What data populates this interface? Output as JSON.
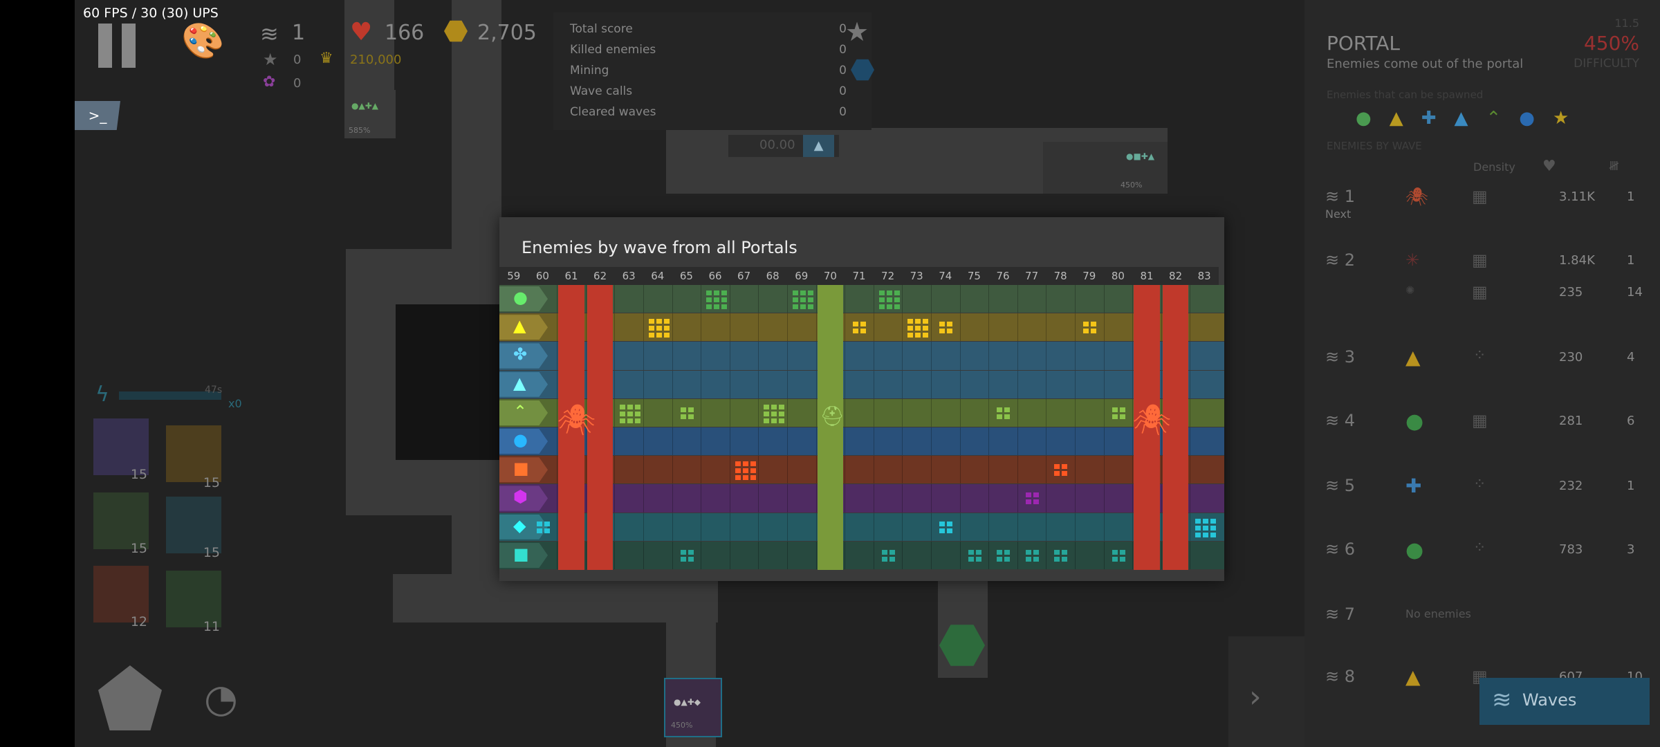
{
  "hud": {
    "fps": "60 FPS / 30 (30) UPS",
    "wave": "1",
    "health": "166",
    "coins": "2,705",
    "stars": "0",
    "crown_score": "210,000",
    "hearts_small": "0",
    "terminal_label": ">_",
    "ability_timer": "47s",
    "ability_multiplier": "x0",
    "ability_counts": [
      "15",
      "15",
      "15",
      "15",
      "12",
      "11"
    ]
  },
  "map": {
    "portal_percent_top": "585%",
    "portal_percent_right": "450%",
    "portal_percent_bottom": "450%",
    "bridge_value": "00.00"
  },
  "score_panel": {
    "rows": [
      {
        "label": "Total score",
        "value": "0"
      },
      {
        "label": "Killed enemies",
        "value": "0"
      },
      {
        "label": "Mining",
        "value": "0"
      },
      {
        "label": "Wave calls",
        "value": "0"
      },
      {
        "label": "Cleared waves",
        "value": "0"
      }
    ]
  },
  "modal": {
    "title": "Enemies by wave from all Portals",
    "wave_numbers": [
      "59",
      "60",
      "61",
      "62",
      "63",
      "64",
      "65",
      "66",
      "67",
      "68",
      "69",
      "70",
      "71",
      "72",
      "73",
      "74",
      "75",
      "76",
      "77",
      "78",
      "79",
      "80",
      "81",
      "82",
      "83"
    ],
    "rows": [
      {
        "shape": "circle",
        "color": "#4caf50",
        "bg": "#3f5a3f",
        "icon": "green-circle-icon"
      },
      {
        "shape": "triangle",
        "color": "#f5c518",
        "bg": "#6f6125",
        "icon": "yellow-triangle-icon"
      },
      {
        "shape": "fan",
        "color": "#4da3e0",
        "bg": "#2f5a73",
        "icon": "blue-fan-icon"
      },
      {
        "shape": "triangle",
        "color": "#5cc0f0",
        "bg": "#2e5a73",
        "icon": "blue-triangle-icon"
      },
      {
        "shape": "chevron",
        "color": "#8bc34a",
        "bg": "#556b30",
        "icon": "green-chevron-icon"
      },
      {
        "shape": "circle",
        "color": "#1e88e5",
        "bg": "#29507a",
        "icon": "blue-circle-icon"
      },
      {
        "shape": "square",
        "color": "#ff5722",
        "bg": "#6e3522",
        "icon": "orange-square-icon"
      },
      {
        "shape": "hexagon",
        "color": "#9c27b0",
        "bg": "#4f2b62",
        "icon": "purple-hexagon-icon"
      },
      {
        "shape": "diamond",
        "color": "#26c6da",
        "bg": "#245a63",
        "icon": "cyan-diamond-icon"
      },
      {
        "shape": "square",
        "color": "#26a69a",
        "bg": "#27493f",
        "icon": "teal-square-icon"
      }
    ],
    "red_boss_columns": [
      "61",
      "62",
      "81",
      "82"
    ],
    "green_boss_column": "70"
  },
  "right_panel": {
    "title": "PORTAL",
    "subtitle": "Enemies come out of the portal",
    "difficulty_value": "450%",
    "difficulty_label": "DIFFICULTY",
    "difficulty_small": "11.5",
    "spawn_heading": "Enemies that can be spawned",
    "by_wave_heading": "ENEMIES BY WAVE",
    "col_density": "Density",
    "waves": [
      {
        "n": "1",
        "sub": "Next",
        "hp": "3.11K",
        "count": "1"
      },
      {
        "n": "2",
        "sub": "",
        "hp": "1.84K",
        "count": "1"
      },
      {
        "n": "",
        "sub": "",
        "hp": "235",
        "count": "14"
      },
      {
        "n": "3",
        "sub": "",
        "hp": "230",
        "count": "4"
      },
      {
        "n": "4",
        "sub": "",
        "hp": "281",
        "count": "6"
      },
      {
        "n": "5",
        "sub": "",
        "hp": "232",
        "count": "1"
      },
      {
        "n": "6",
        "sub": "",
        "hp": "783",
        "count": "3"
      },
      {
        "n": "7",
        "sub": "No enemies",
        "hp": "",
        "count": ""
      },
      {
        "n": "8",
        "sub": "",
        "hp": "607",
        "count": "10"
      }
    ],
    "waves_button": "Waves"
  },
  "colors": {
    "red_col": "#c0392b",
    "green_col": "#7a9a3a"
  }
}
